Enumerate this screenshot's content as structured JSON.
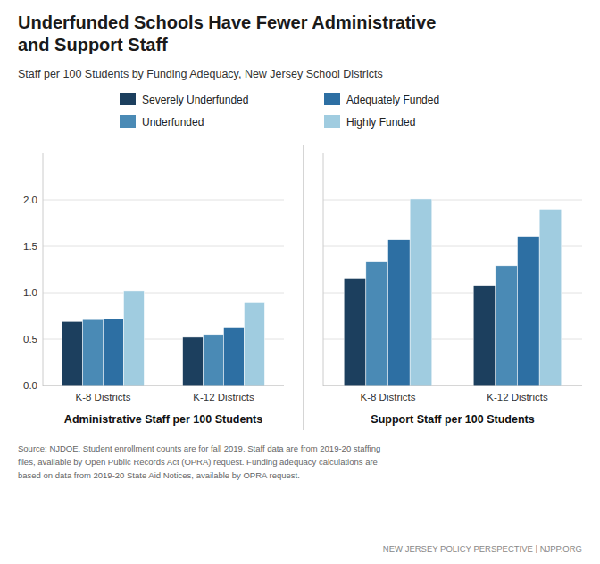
{
  "chart_data": [
    {
      "type": "bar",
      "title": "Underfunded Schools Have Fewer Administrative\nand Support Staff",
      "subtitle": "Staff per 100 Students by Funding Adequacy, New Jersey School Districts",
      "xlabel": "Administrative Staff per 100 Students",
      "categories": [
        "K-8 Districts",
        "K-12 Districts"
      ],
      "series": [
        {
          "name": "Severely Underfunded",
          "color": "#1c3f5e",
          "values": [
            0.69,
            0.52
          ]
        },
        {
          "name": "Underfunded",
          "color": "#4a8ab5",
          "values": [
            0.71,
            0.55
          ]
        },
        {
          "name": "Adequately Funded",
          "color": "#2d6fa3",
          "values": [
            0.72,
            0.63
          ]
        },
        {
          "name": "Highly Funded",
          "color": "#a0cce0",
          "values": [
            1.02,
            0.9
          ]
        }
      ],
      "ylim": [
        0,
        2.5
      ],
      "yticks": [
        {
          "value": 0.0,
          "label": "0.0"
        },
        0.5,
        {
          "value": 1.0,
          "label": "1.0"
        },
        1.5,
        {
          "value": 2.0,
          "label": "2.0"
        }
      ],
      "grid": true,
      "legend": "top",
      "annotations": [
        "Source: NJDOE. Student enrollment counts are for fall 2019. Staff data are from 2019-20 staffing\nfiles, available by Open Public Records Act (OPRA) request. Funding adequacy calculations are\nbased on data from 2019-20 State Aid Notices, available by OPRA request.",
        "NEW JERSEY POLICY PERSPECTIVE  |  NJPP.ORG"
      ]
    },
    {
      "type": "bar",
      "xlabel": "Support Staff per 100 Students",
      "categories": [
        "K-8 Districts",
        "K-12 Districts"
      ],
      "series": [
        {
          "name": "Severely Underfunded",
          "color": "#1c3f5e",
          "values": [
            1.15,
            1.08
          ]
        },
        {
          "name": "Underfunded",
          "color": "#4a8ab5",
          "values": [
            1.33,
            1.29
          ]
        },
        {
          "name": "Adequately Funded",
          "color": "#2d6fa3",
          "values": [
            1.57,
            1.6
          ]
        },
        {
          "name": "Highly Funded",
          "color": "#a0cce0",
          "values": [
            2.01,
            1.9
          ]
        }
      ],
      "ylim": [
        0,
        2.5
      ],
      "yticks": [
        0,
        0.5,
        1,
        1.5,
        2
      ],
      "grid": true,
      "tick_labels": "x"
    }
  ]
}
